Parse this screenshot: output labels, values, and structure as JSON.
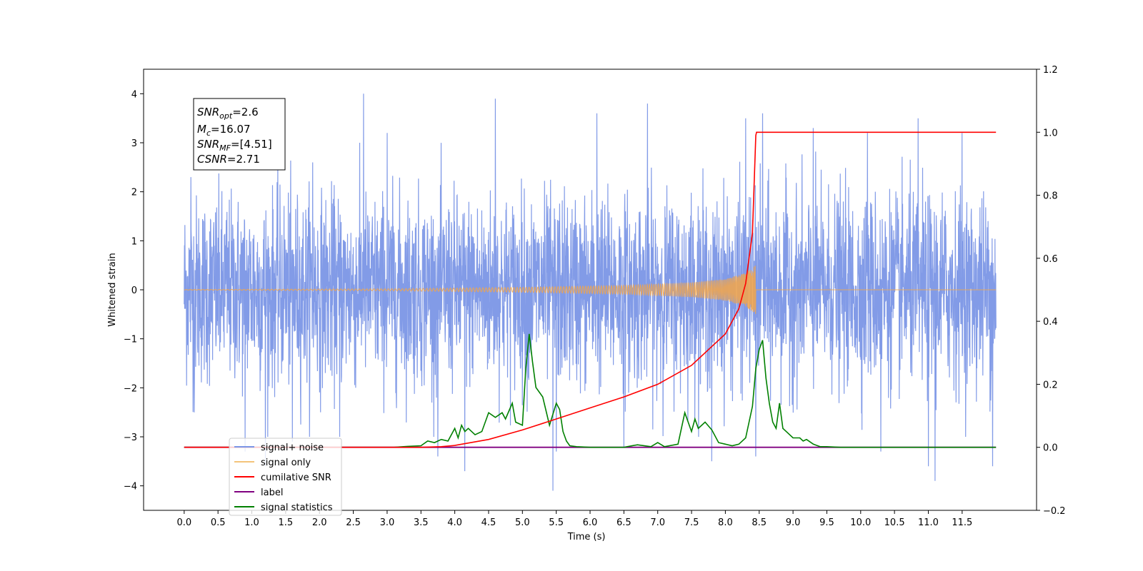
{
  "chart_data": {
    "type": "line",
    "title": "",
    "xlabel": "Time (s)",
    "ylabel": "Whitened strain",
    "y2label": "",
    "xlim": [
      -0.6,
      12.6
    ],
    "ylim": [
      -4.5,
      4.5
    ],
    "y2lim": [
      -0.2,
      1.2
    ],
    "x_ticks": [
      "0.0",
      "0.5",
      "1.0",
      "1.5",
      "2.0",
      "2.5",
      "3.0",
      "3.5",
      "4.0",
      "4.5",
      "5.0",
      "5.5",
      "6.0",
      "6.5",
      "7.0",
      "7.5",
      "8.0",
      "8.5",
      "9.0",
      "9.5",
      "10.0",
      "10.5",
      "11.0",
      "11.5"
    ],
    "y_ticks": [
      "4",
      "3",
      "2",
      "1",
      "0",
      "−1",
      "−2",
      "−3",
      "−4"
    ],
    "y2_ticks": [
      "1.2",
      "1.0",
      "0.8",
      "0.6",
      "0.4",
      "0.2",
      "0.0",
      "−0.2"
    ],
    "legend_position": "lower-left",
    "grid": false,
    "annotation": {
      "snr_opt": {
        "sym": "SNR",
        "sub": "opt",
        "value": "=2.6"
      },
      "mc": {
        "sym": "M",
        "sub": "c",
        "value": "=16.07"
      },
      "snr_mf": {
        "sym": "SNR",
        "sub": "MF",
        "value": "=[4.51]"
      },
      "csnr": {
        "sym": "CSNR",
        "value": "=2.71"
      }
    },
    "series": [
      {
        "name": "signal+ noise",
        "axis": "left",
        "color": "#7b96e6",
        "time_range": [
          0,
          12
        ],
        "noise_sigma": 1.0,
        "spikes": [
          [
            0.1,
            2.3
          ],
          [
            0.15,
            -2.5
          ],
          [
            0.9,
            -3.3
          ],
          [
            1.2,
            -3.6
          ],
          [
            1.6,
            -3.1
          ],
          [
            1.9,
            2.6
          ],
          [
            2.65,
            4.0
          ],
          [
            2.3,
            -3.0
          ],
          [
            3.0,
            3.2
          ],
          [
            3.75,
            -3.4
          ],
          [
            4.15,
            -3.7
          ],
          [
            4.6,
            3.9
          ],
          [
            5.45,
            -4.1
          ],
          [
            5.5,
            -3.3
          ],
          [
            6.1,
            3.6
          ],
          [
            6.5,
            -3.2
          ],
          [
            6.85,
            3.8
          ],
          [
            7.8,
            -3.5
          ],
          [
            8.3,
            3.5
          ],
          [
            8.45,
            -3.4
          ],
          [
            8.55,
            3.6
          ],
          [
            10.1,
            3.2
          ],
          [
            10.3,
            -3.3
          ],
          [
            10.85,
            3.5
          ],
          [
            11.0,
            -3.6
          ],
          [
            11.1,
            -3.9
          ],
          [
            11.5,
            -3.4
          ],
          [
            11.95,
            -3.6
          ],
          [
            11.5,
            3.2
          ],
          [
            9.3,
            3.3
          ]
        ]
      },
      {
        "name": "signal only",
        "axis": "left",
        "color": "#f4a648",
        "peak_time": 8.45,
        "envelope_points": [
          [
            0,
            0.005
          ],
          [
            3.0,
            0.02
          ],
          [
            5.0,
            0.05
          ],
          [
            6.5,
            0.09
          ],
          [
            7.5,
            0.15
          ],
          [
            8.0,
            0.22
          ],
          [
            8.3,
            0.34
          ],
          [
            8.4,
            0.45
          ],
          [
            8.45,
            0.5
          ],
          [
            8.46,
            0.0
          ],
          [
            12,
            0.0
          ]
        ]
      },
      {
        "name": "cumilative SNR",
        "axis": "right",
        "color": "#ff0000",
        "x": [
          0,
          3.5,
          3.8,
          4.0,
          4.5,
          5.0,
          5.5,
          6.0,
          6.5,
          7.0,
          7.5,
          8.0,
          8.2,
          8.3,
          8.4,
          8.45,
          8.46,
          12.0
        ],
        "y": [
          0,
          0,
          0.002,
          0.006,
          0.025,
          0.055,
          0.09,
          0.125,
          0.16,
          0.2,
          0.26,
          0.36,
          0.44,
          0.52,
          0.68,
          0.99,
          1.0,
          1.0
        ]
      },
      {
        "name": "label",
        "axis": "right",
        "color": "#800080",
        "x": [
          0,
          12
        ],
        "y": [
          0,
          0
        ]
      },
      {
        "name": "signal statistics",
        "axis": "right",
        "color": "#008000",
        "x": [
          0,
          3.1,
          3.3,
          3.5,
          3.6,
          3.7,
          3.8,
          3.9,
          4.0,
          4.05,
          4.1,
          4.15,
          4.2,
          4.3,
          4.4,
          4.5,
          4.6,
          4.7,
          4.75,
          4.85,
          4.9,
          5.0,
          5.05,
          5.1,
          5.15,
          5.2,
          5.3,
          5.4,
          5.5,
          5.55,
          5.6,
          5.65,
          5.7,
          5.8,
          6.0,
          6.5,
          6.7,
          6.9,
          7.0,
          7.1,
          7.3,
          7.4,
          7.45,
          7.5,
          7.55,
          7.6,
          7.7,
          7.8,
          7.9,
          8.0,
          8.1,
          8.2,
          8.3,
          8.4,
          8.45,
          8.5,
          8.55,
          8.6,
          8.65,
          8.7,
          8.75,
          8.8,
          8.85,
          8.9,
          9.0,
          9.1,
          9.15,
          9.2,
          9.3,
          9.4,
          9.5,
          9.7,
          10,
          12
        ],
        "y": [
          0,
          0,
          0.003,
          0.005,
          0.02,
          0.015,
          0.025,
          0.02,
          0.06,
          0.03,
          0.07,
          0.05,
          0.06,
          0.04,
          0.05,
          0.11,
          0.095,
          0.11,
          0.09,
          0.14,
          0.08,
          0.07,
          0.25,
          0.36,
          0.27,
          0.19,
          0.16,
          0.07,
          0.14,
          0.12,
          0.05,
          0.02,
          0.005,
          0.002,
          0,
          0.0,
          0.008,
          0.002,
          0.015,
          0.002,
          0.01,
          0.11,
          0.08,
          0.05,
          0.09,
          0.06,
          0.08,
          0.055,
          0.015,
          0.01,
          0.005,
          0.01,
          0.03,
          0.13,
          0.25,
          0.31,
          0.34,
          0.22,
          0.14,
          0.08,
          0.06,
          0.14,
          0.06,
          0.05,
          0.03,
          0.03,
          0.02,
          0.025,
          0.01,
          0.002,
          0.002,
          0,
          0,
          0
        ]
      }
    ]
  }
}
